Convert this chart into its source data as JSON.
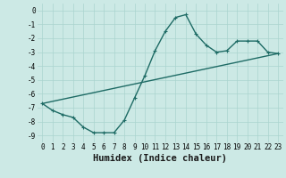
{
  "xlabel": "Humidex (Indice chaleur)",
  "ylabel": "",
  "background_color": "#cce9e5",
  "grid_color": "#aad4cf",
  "line_color": "#1e6b65",
  "curve_x": [
    0,
    1,
    2,
    3,
    4,
    5,
    6,
    7,
    8,
    9,
    10,
    11,
    12,
    13,
    14,
    15,
    16,
    17,
    18,
    19,
    20,
    21,
    22,
    23
  ],
  "curve_y": [
    -6.7,
    -7.2,
    -7.5,
    -7.7,
    -8.4,
    -8.8,
    -8.8,
    -8.8,
    -7.9,
    -6.3,
    -4.7,
    -2.9,
    -1.5,
    -0.5,
    -0.3,
    -1.7,
    -2.5,
    -3.0,
    -2.9,
    -2.2,
    -2.2,
    -2.2,
    -3.0,
    -3.1
  ],
  "line_x": [
    0,
    23
  ],
  "line_y": [
    -6.7,
    -3.1
  ],
  "xlim": [
    -0.5,
    23.5
  ],
  "ylim": [
    -9.5,
    0.5
  ],
  "yticks": [
    0,
    -1,
    -2,
    -3,
    -4,
    -5,
    -6,
    -7,
    -8,
    -9
  ],
  "xtick_labels": [
    "0",
    "1",
    "2",
    "3",
    "4",
    "5",
    "6",
    "7",
    "8",
    "9",
    "10",
    "11",
    "12",
    "13",
    "14",
    "15",
    "16",
    "17",
    "18",
    "19",
    "20",
    "21",
    "22",
    "23"
  ],
  "tick_fontsize": 5.5,
  "xlabel_fontsize": 7.5,
  "marker_size": 3.5,
  "linewidth": 1.0
}
